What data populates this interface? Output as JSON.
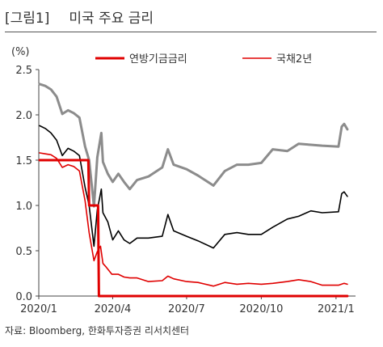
{
  "figure": {
    "tag": "[그림1]",
    "title": "미국 주요 금리",
    "source": "자료: Bloomberg, 한화투자증권 리서치센터"
  },
  "chart_data": {
    "type": "line",
    "unit_label": "(%)",
    "ylim": [
      0.0,
      2.5
    ],
    "yticks": [
      "0.0",
      "0.5",
      "1.0",
      "1.5",
      "2.0",
      "2.5"
    ],
    "xticks": [
      "2020/1",
      "2020/4",
      "2020/7",
      "2020/10",
      "2021/1"
    ],
    "legend": [
      {
        "label": "연방기금금리",
        "color": "#e00000"
      },
      {
        "label": "국채2년",
        "color": "#e00000"
      }
    ],
    "series": [
      {
        "name": "국채2년",
        "color": "#e00000",
        "points": [
          [
            "2020-01-02",
            1.58
          ],
          [
            "2020-01-09",
            1.57
          ],
          [
            "2020-01-16",
            1.56
          ],
          [
            "2020-01-23",
            1.52
          ],
          [
            "2020-01-30",
            1.42
          ],
          [
            "2020-02-06",
            1.45
          ],
          [
            "2020-02-13",
            1.43
          ],
          [
            "2020-02-20",
            1.38
          ],
          [
            "2020-02-27",
            1.05
          ],
          [
            "2020-03-03",
            0.7
          ],
          [
            "2020-03-09",
            0.39
          ],
          [
            "2020-03-13",
            0.49
          ],
          [
            "2020-03-17",
            0.55
          ],
          [
            "2020-03-20",
            0.36
          ],
          [
            "2020-03-24",
            0.32
          ],
          [
            "2020-03-31",
            0.24
          ],
          [
            "2020-04-08",
            0.24
          ],
          [
            "2020-04-15",
            0.21
          ],
          [
            "2020-04-22",
            0.2
          ],
          [
            "2020-05-01",
            0.2
          ],
          [
            "2020-05-15",
            0.16
          ],
          [
            "2020-06-01",
            0.17
          ],
          [
            "2020-06-08",
            0.22
          ],
          [
            "2020-06-15",
            0.19
          ],
          [
            "2020-07-01",
            0.16
          ],
          [
            "2020-07-15",
            0.15
          ],
          [
            "2020-08-03",
            0.11
          ],
          [
            "2020-08-17",
            0.15
          ],
          [
            "2020-09-01",
            0.13
          ],
          [
            "2020-09-15",
            0.14
          ],
          [
            "2020-10-01",
            0.13
          ],
          [
            "2020-10-15",
            0.14
          ],
          [
            "2020-11-02",
            0.16
          ],
          [
            "2020-11-16",
            0.18
          ],
          [
            "2020-12-01",
            0.16
          ],
          [
            "2020-12-15",
            0.12
          ],
          [
            "2021-01-04",
            0.12
          ],
          [
            "2021-01-11",
            0.14
          ],
          [
            "2021-01-15",
            0.13
          ]
        ]
      },
      {
        "name": "Black series",
        "color": "#000000",
        "points": [
          [
            "2020-01-02",
            1.88
          ],
          [
            "2020-01-09",
            1.85
          ],
          [
            "2020-01-16",
            1.8
          ],
          [
            "2020-01-23",
            1.72
          ],
          [
            "2020-01-30",
            1.55
          ],
          [
            "2020-02-06",
            1.63
          ],
          [
            "2020-02-13",
            1.6
          ],
          [
            "2020-02-20",
            1.55
          ],
          [
            "2020-02-27",
            1.2
          ],
          [
            "2020-03-03",
            1.0
          ],
          [
            "2020-03-09",
            0.55
          ],
          [
            "2020-03-13",
            0.95
          ],
          [
            "2020-03-18",
            1.18
          ],
          [
            "2020-03-20",
            0.92
          ],
          [
            "2020-03-26",
            0.82
          ],
          [
            "2020-04-01",
            0.62
          ],
          [
            "2020-04-08",
            0.72
          ],
          [
            "2020-04-15",
            0.62
          ],
          [
            "2020-04-22",
            0.58
          ],
          [
            "2020-05-01",
            0.64
          ],
          [
            "2020-05-15",
            0.64
          ],
          [
            "2020-06-01",
            0.66
          ],
          [
            "2020-06-08",
            0.9
          ],
          [
            "2020-06-15",
            0.72
          ],
          [
            "2020-07-01",
            0.66
          ],
          [
            "2020-07-15",
            0.61
          ],
          [
            "2020-08-03",
            0.53
          ],
          [
            "2020-08-17",
            0.68
          ],
          [
            "2020-09-01",
            0.7
          ],
          [
            "2020-09-15",
            0.68
          ],
          [
            "2020-10-01",
            0.68
          ],
          [
            "2020-10-15",
            0.76
          ],
          [
            "2020-11-02",
            0.85
          ],
          [
            "2020-11-16",
            0.88
          ],
          [
            "2020-12-01",
            0.94
          ],
          [
            "2020-12-15",
            0.92
          ],
          [
            "2021-01-04",
            0.93
          ],
          [
            "2021-01-08",
            1.13
          ],
          [
            "2021-01-11",
            1.15
          ],
          [
            "2021-01-15",
            1.1
          ]
        ]
      },
      {
        "name": "Gray series",
        "color": "#8c8c8c",
        "points": [
          [
            "2020-01-02",
            2.34
          ],
          [
            "2020-01-09",
            2.32
          ],
          [
            "2020-01-16",
            2.28
          ],
          [
            "2020-01-23",
            2.2
          ],
          [
            "2020-01-30",
            2.01
          ],
          [
            "2020-02-06",
            2.05
          ],
          [
            "2020-02-13",
            2.02
          ],
          [
            "2020-02-20",
            1.97
          ],
          [
            "2020-02-27",
            1.65
          ],
          [
            "2020-03-03",
            1.5
          ],
          [
            "2020-03-09",
            0.99
          ],
          [
            "2020-03-13",
            1.53
          ],
          [
            "2020-03-18",
            1.8
          ],
          [
            "2020-03-20",
            1.48
          ],
          [
            "2020-03-26",
            1.35
          ],
          [
            "2020-04-01",
            1.26
          ],
          [
            "2020-04-08",
            1.35
          ],
          [
            "2020-04-15",
            1.26
          ],
          [
            "2020-04-22",
            1.18
          ],
          [
            "2020-05-01",
            1.28
          ],
          [
            "2020-05-15",
            1.32
          ],
          [
            "2020-06-01",
            1.42
          ],
          [
            "2020-06-08",
            1.62
          ],
          [
            "2020-06-15",
            1.45
          ],
          [
            "2020-07-01",
            1.4
          ],
          [
            "2020-07-15",
            1.33
          ],
          [
            "2020-08-03",
            1.22
          ],
          [
            "2020-08-17",
            1.38
          ],
          [
            "2020-09-01",
            1.45
          ],
          [
            "2020-09-15",
            1.45
          ],
          [
            "2020-10-01",
            1.47
          ],
          [
            "2020-10-15",
            1.62
          ],
          [
            "2020-11-02",
            1.6
          ],
          [
            "2020-11-16",
            1.68
          ],
          [
            "2020-12-01",
            1.67
          ],
          [
            "2020-12-15",
            1.66
          ],
          [
            "2021-01-04",
            1.65
          ],
          [
            "2021-01-08",
            1.87
          ],
          [
            "2021-01-11",
            1.9
          ],
          [
            "2021-01-15",
            1.84
          ]
        ]
      },
      {
        "name": "연방기금금리",
        "color": "#e00000",
        "step": true,
        "points": [
          [
            "2020-01-02",
            1.5
          ],
          [
            "2020-03-02",
            1.5
          ],
          [
            "2020-03-03",
            1.0
          ],
          [
            "2020-03-14",
            1.0
          ],
          [
            "2020-03-15",
            0.0
          ],
          [
            "2021-01-15",
            0.0
          ]
        ]
      }
    ]
  }
}
